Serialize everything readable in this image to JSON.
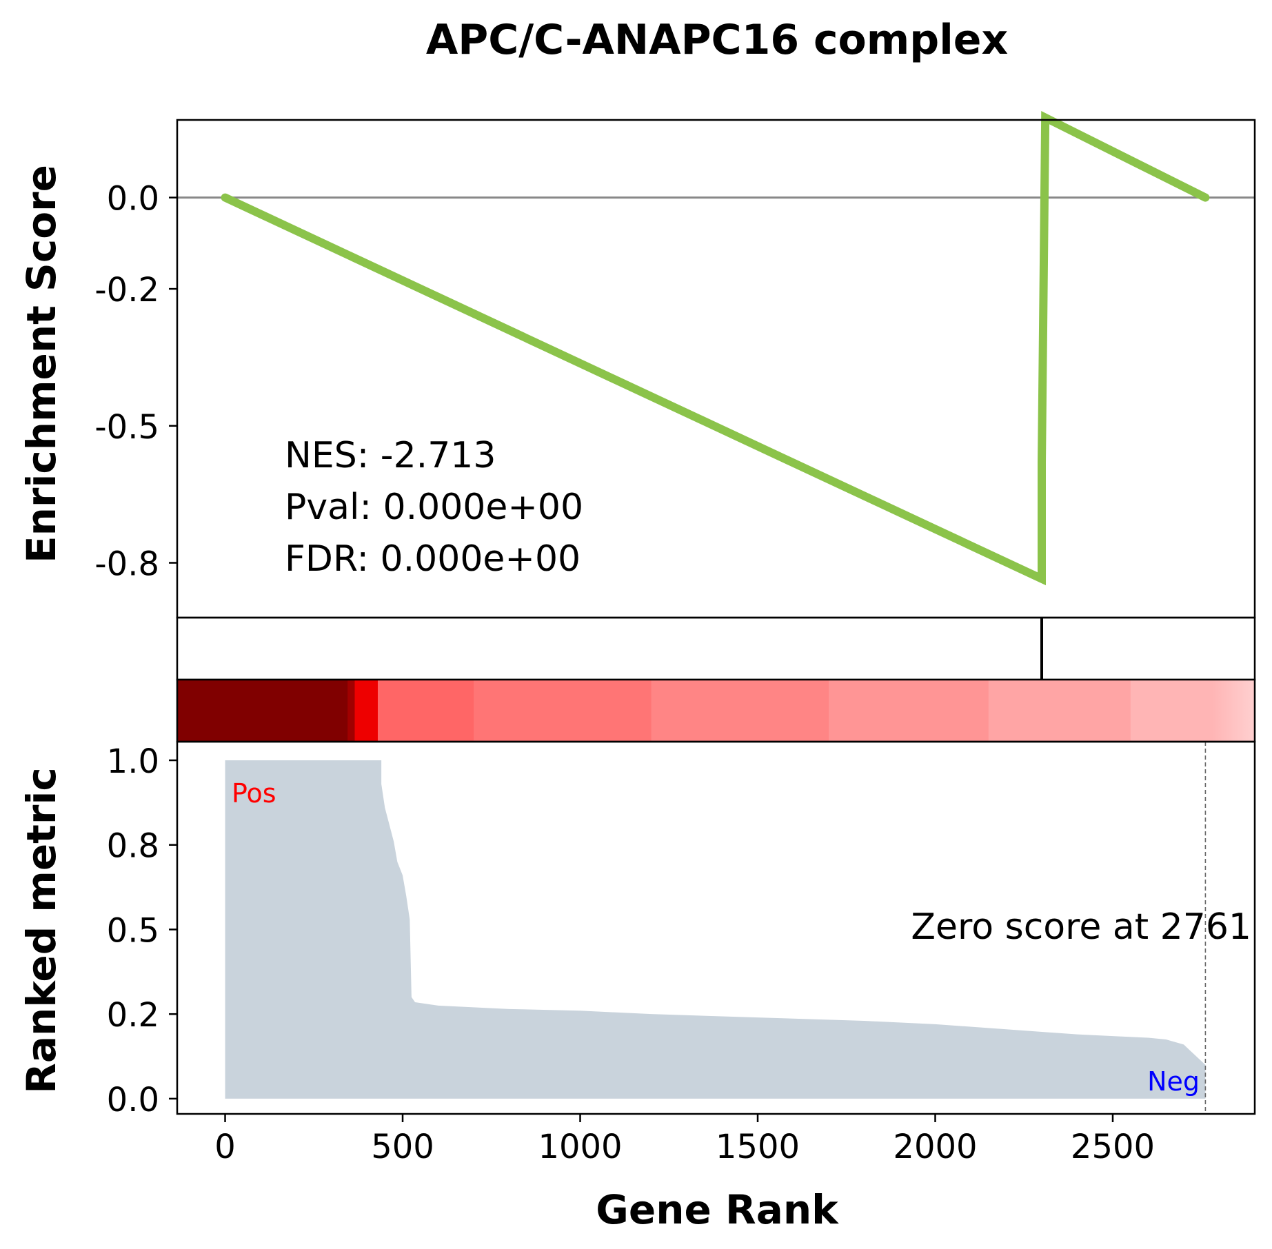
{
  "title": "APC/C-ANAPC16 complex",
  "chart_data": [
    {
      "panel": "enrichment",
      "type": "line",
      "ylabel": "Enrichment Score",
      "yticks": [
        "0.0",
        "-0.2",
        "-0.5",
        "-0.8"
      ],
      "ytick_values": [
        0.0,
        -0.2,
        -0.5,
        -0.8
      ],
      "xlim": [
        -135,
        2900
      ],
      "ylim": [
        -0.92,
        0.17
      ],
      "x": [
        0,
        2300,
        2300,
        2310,
        2761
      ],
      "y": [
        0.0,
        -0.835,
        -0.58,
        0.175,
        0.0
      ],
      "zero_line": 0.0,
      "line_color": "#8BC34A",
      "stats": [
        "NES: -2.713",
        "Pval: 0.000e+00",
        "FDR: 0.000e+00"
      ]
    },
    {
      "panel": "hits",
      "type": "scatter",
      "hit_positions": [
        2300
      ],
      "hit_color": "#000000"
    },
    {
      "panel": "rank-heatmap",
      "type": "heatmap",
      "color_low": "#FFC8C8",
      "color_high": "#800000",
      "segments": [
        {
          "x0": -135,
          "x1": 345,
          "color": "#800000"
        },
        {
          "x0": 345,
          "x1": 365,
          "color": "#A00000"
        },
        {
          "x0": 365,
          "x1": 430,
          "color": "#EE0000"
        },
        {
          "x0": 430,
          "x1": 700,
          "color": "#FF6666"
        },
        {
          "x0": 700,
          "x1": 1200,
          "color": "#FF7575"
        },
        {
          "x0": 1200,
          "x1": 1700,
          "color": "#FF8585"
        },
        {
          "x0": 1700,
          "x1": 2150,
          "color": "#FF9595"
        },
        {
          "x0": 2150,
          "x1": 2550,
          "color": "#FFA5A5"
        },
        {
          "x0": 2550,
          "x1": 2780,
          "color": "#FFB5B5"
        },
        {
          "x0": 2780,
          "x1": 2900,
          "color": "#FFC8C8"
        }
      ]
    },
    {
      "panel": "ranked-metric",
      "type": "area",
      "ylabel": "Ranked metric",
      "xlabel": "Gene Rank",
      "xticks": [
        "0",
        "500",
        "1000",
        "1500",
        "2000",
        "2500"
      ],
      "xtick_values": [
        0,
        500,
        1000,
        1500,
        2000,
        2500
      ],
      "yticks": [
        "0.0",
        "0.2",
        "0.5",
        "0.8",
        "1.0"
      ],
      "ytick_values": [
        0.0,
        0.25,
        0.5,
        0.75,
        1.0
      ],
      "xlim": [
        -135,
        2900
      ],
      "ylim": [
        -0.045,
        1.055
      ],
      "x": [
        0,
        440,
        440,
        450,
        460,
        475,
        485,
        500,
        510,
        520,
        525,
        535,
        600,
        700,
        800,
        1000,
        1200,
        1500,
        1800,
        2000,
        2200,
        2400,
        2500,
        2600,
        2650,
        2700,
        2720,
        2761
      ],
      "y": [
        1.0,
        1.0,
        0.93,
        0.86,
        0.82,
        0.76,
        0.7,
        0.66,
        0.6,
        0.53,
        0.3,
        0.285,
        0.275,
        0.27,
        0.265,
        0.26,
        0.25,
        0.24,
        0.23,
        0.22,
        0.205,
        0.19,
        0.185,
        0.18,
        0.175,
        0.16,
        0.14,
        0.1
      ],
      "fill_color": "#C9D3DC",
      "pos_label": "Pos",
      "pos_color": "#FF0000",
      "neg_label": "Neg",
      "neg_color": "#0000FF",
      "zero_cross_rank": 2761,
      "zero_cross_label": "Zero score at 2761"
    }
  ]
}
